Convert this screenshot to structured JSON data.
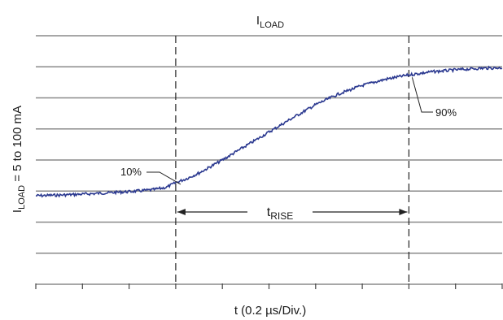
{
  "chart_data": {
    "type": "line",
    "title": {
      "main": "I",
      "sub": "LOAD"
    },
    "xlabel": "t (0.2 µs/Div.)",
    "ylabel": {
      "main": "I",
      "sub": "LOAD",
      "rest": " = 5 to 100 mA"
    },
    "x_divisions": 10,
    "y_divisions": 8,
    "xlim": [
      0,
      10
    ],
    "ylim": [
      0,
      8
    ],
    "grid": "horizontal",
    "series": [
      {
        "color": "#2b3990",
        "x": [
          0,
          0.5,
          1,
          1.5,
          2,
          2.5,
          2.8,
          3,
          3.2,
          3.5,
          4,
          4.5,
          5,
          5.5,
          6,
          6.5,
          7,
          7.5,
          8,
          8.5,
          9,
          9.5,
          10
        ],
        "y": [
          2.85,
          2.87,
          2.9,
          2.94,
          2.98,
          3.04,
          3.12,
          3.27,
          3.38,
          3.58,
          4.0,
          4.45,
          4.9,
          5.35,
          5.78,
          6.13,
          6.4,
          6.6,
          6.74,
          6.84,
          6.9,
          6.95,
          6.97
        ]
      }
    ],
    "markers": [
      {
        "x": 3.0,
        "label": "10%"
      },
      {
        "x": 8.0,
        "label": "90%"
      }
    ],
    "span": {
      "from": 3.0,
      "to": 8.0,
      "label": {
        "main": "t",
        "sub": "RISE"
      }
    },
    "annotations": [
      {
        "text": "10%",
        "at": [
          3.0,
          3.27
        ]
      },
      {
        "text": "90%",
        "at": [
          8.0,
          6.74
        ]
      }
    ]
  }
}
